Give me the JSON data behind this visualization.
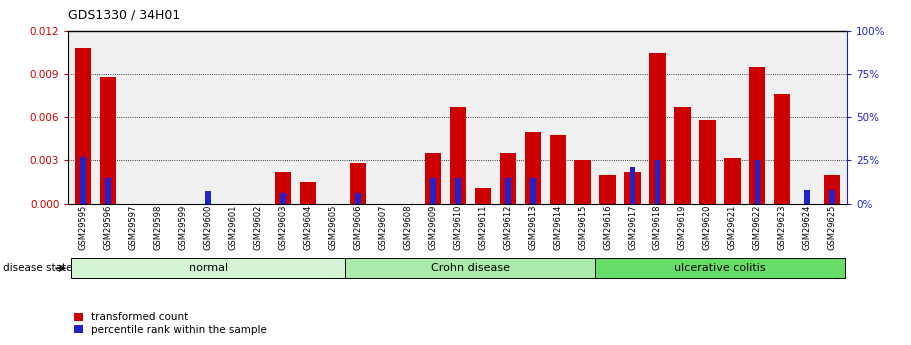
{
  "title": "GDS1330 / 34H01",
  "samples": [
    "GSM29595",
    "GSM29596",
    "GSM29597",
    "GSM29598",
    "GSM29599",
    "GSM29600",
    "GSM29601",
    "GSM29602",
    "GSM29603",
    "GSM29604",
    "GSM29605",
    "GSM29606",
    "GSM29607",
    "GSM29608",
    "GSM29609",
    "GSM29610",
    "GSM29611",
    "GSM29612",
    "GSM29613",
    "GSM29614",
    "GSM29615",
    "GSM29616",
    "GSM29617",
    "GSM29618",
    "GSM29619",
    "GSM29620",
    "GSM29621",
    "GSM29622",
    "GSM29623",
    "GSM29624",
    "GSM29625"
  ],
  "red_values": [
    0.0108,
    0.0088,
    0.0,
    0.0,
    0.0,
    0.0,
    0.0,
    0.0,
    0.0022,
    0.0015,
    0.0,
    0.0028,
    0.0,
    0.0,
    0.0035,
    0.0067,
    0.0011,
    0.0035,
    0.005,
    0.0048,
    0.003,
    0.002,
    0.0022,
    0.0105,
    0.0067,
    0.0058,
    0.0032,
    0.0095,
    0.0076,
    0.0,
    0.002
  ],
  "blue_values_pct": [
    27,
    15,
    0,
    0,
    0,
    7,
    0,
    0,
    6,
    0,
    0,
    6,
    0,
    0,
    15,
    15,
    0,
    15,
    15,
    0,
    0,
    0,
    21,
    25,
    0,
    0,
    0,
    25,
    0,
    8,
    8
  ],
  "ylim_left": [
    0,
    0.012
  ],
  "ylim_right": [
    0,
    100
  ],
  "yticks_left": [
    0,
    0.003,
    0.006,
    0.009,
    0.012
  ],
  "yticks_right": [
    0,
    25,
    50,
    75,
    100
  ],
  "disease_groups": [
    {
      "label": "normal",
      "start": 0,
      "end": 11
    },
    {
      "label": "Crohn disease",
      "start": 11,
      "end": 21
    },
    {
      "label": "ulcerative colitis",
      "start": 21,
      "end": 31
    }
  ],
  "group_colors": [
    "#d4f5d4",
    "#aaeaaa",
    "#66dd66"
  ],
  "bar_color_red": "#cc0000",
  "bar_color_blue": "#2222cc",
  "bg_color": "#ffffff",
  "legend_red": "transformed count",
  "legend_blue": "percentile rank within the sample",
  "disease_state_label": "disease state"
}
